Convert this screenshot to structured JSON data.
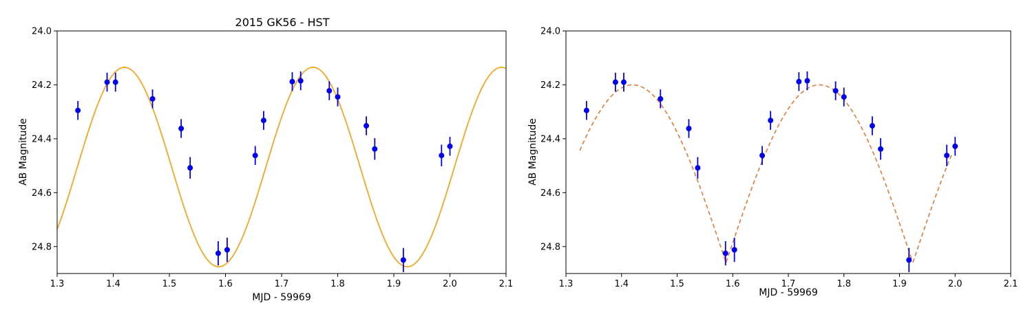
{
  "chart_data": [
    {
      "type": "scatter",
      "title": "2015 GK56 - HST",
      "xlabel": "MJD - 59969",
      "ylabel": "AB Magnitude",
      "xlim": [
        1.3,
        2.1
      ],
      "ylim": [
        24.9,
        24.0
      ],
      "y_inverted": true,
      "xticks": [
        "1.3",
        "1.4",
        "1.5",
        "1.6",
        "1.7",
        "1.8",
        "1.9",
        "2.0",
        "2.1"
      ],
      "yticks": [
        "24.0",
        "24.2",
        "24.4",
        "24.6",
        "24.8"
      ],
      "grid": false,
      "series": [
        {
          "kind": "errorbar",
          "color": "#0000ee",
          "points": [
            {
              "x": 1.337,
              "y": 24.295,
              "err": 0.035
            },
            {
              "x": 1.389,
              "y": 24.19,
              "err": 0.035
            },
            {
              "x": 1.404,
              "y": 24.19,
              "err": 0.035
            },
            {
              "x": 1.47,
              "y": 24.252,
              "err": 0.035
            },
            {
              "x": 1.521,
              "y": 24.362,
              "err": 0.035
            },
            {
              "x": 1.537,
              "y": 24.508,
              "err": 0.04
            },
            {
              "x": 1.587,
              "y": 24.825,
              "err": 0.045
            },
            {
              "x": 1.603,
              "y": 24.812,
              "err": 0.045
            },
            {
              "x": 1.653,
              "y": 24.462,
              "err": 0.035
            },
            {
              "x": 1.668,
              "y": 24.332,
              "err": 0.035
            },
            {
              "x": 1.719,
              "y": 24.188,
              "err": 0.035
            },
            {
              "x": 1.734,
              "y": 24.185,
              "err": 0.035
            },
            {
              "x": 1.785,
              "y": 24.222,
              "err": 0.035
            },
            {
              "x": 1.8,
              "y": 24.245,
              "err": 0.035
            },
            {
              "x": 1.851,
              "y": 24.352,
              "err": 0.035
            },
            {
              "x": 1.866,
              "y": 24.438,
              "err": 0.04
            },
            {
              "x": 1.917,
              "y": 24.85,
              "err": 0.045
            },
            {
              "x": 1.985,
              "y": 24.462,
              "err": 0.04
            },
            {
              "x": 2.0,
              "y": 24.428,
              "err": 0.035
            }
          ]
        },
        {
          "kind": "sine-fit",
          "color": "#f5a623",
          "style": "solid",
          "mean": 24.505,
          "amplitude": 0.37,
          "period": 0.336,
          "max_x": 1.42
        }
      ]
    },
    {
      "type": "scatter",
      "title": "",
      "xlabel": "MJD - 59969",
      "ylabel": "AB Magnitude",
      "xlim": [
        1.3,
        2.1
      ],
      "ylim": [
        24.9,
        24.0
      ],
      "y_inverted": true,
      "xticks": [
        "1.3",
        "1.4",
        "1.5",
        "1.6",
        "1.7",
        "1.8",
        "1.9",
        "2.0",
        "2.1"
      ],
      "yticks": [
        "24.0",
        "24.2",
        "24.4",
        "24.6",
        "24.8"
      ],
      "grid": false,
      "series": [
        {
          "kind": "errorbar",
          "color": "#0000ee",
          "points": [
            {
              "x": 1.337,
              "y": 24.295,
              "err": 0.035
            },
            {
              "x": 1.389,
              "y": 24.19,
              "err": 0.035
            },
            {
              "x": 1.404,
              "y": 24.19,
              "err": 0.035
            },
            {
              "x": 1.47,
              "y": 24.252,
              "err": 0.035
            },
            {
              "x": 1.521,
              "y": 24.362,
              "err": 0.035
            },
            {
              "x": 1.537,
              "y": 24.508,
              "err": 0.04
            },
            {
              "x": 1.587,
              "y": 24.825,
              "err": 0.045
            },
            {
              "x": 1.603,
              "y": 24.812,
              "err": 0.045
            },
            {
              "x": 1.653,
              "y": 24.462,
              "err": 0.035
            },
            {
              "x": 1.668,
              "y": 24.332,
              "err": 0.035
            },
            {
              "x": 1.719,
              "y": 24.188,
              "err": 0.035
            },
            {
              "x": 1.734,
              "y": 24.185,
              "err": 0.035
            },
            {
              "x": 1.785,
              "y": 24.222,
              "err": 0.035
            },
            {
              "x": 1.8,
              "y": 24.245,
              "err": 0.035
            },
            {
              "x": 1.851,
              "y": 24.352,
              "err": 0.035
            },
            {
              "x": 1.866,
              "y": 24.438,
              "err": 0.04
            },
            {
              "x": 1.917,
              "y": 24.85,
              "err": 0.045
            },
            {
              "x": 1.985,
              "y": 24.462,
              "err": 0.04
            },
            {
              "x": 2.0,
              "y": 24.428,
              "err": 0.035
            }
          ]
        },
        {
          "kind": "abs-sine-fit",
          "color": "#e07b39",
          "style": "dashed",
          "top": 24.2,
          "depth": 0.66,
          "period": 0.336,
          "min_x": 1.588,
          "x_start": 1.325,
          "x_end": 1.995
        }
      ]
    }
  ]
}
